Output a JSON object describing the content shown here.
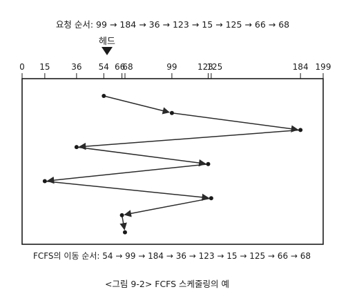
{
  "request_order": "요청 순서: 99 → 184 → 36 → 123 → 15 → 125 → 66 → 68",
  "head_label": "헤드",
  "head_position": 54,
  "axis": {
    "min": 0,
    "max": 199,
    "ticks": [
      0,
      15,
      36,
      54,
      66,
      68,
      99,
      123,
      125,
      184,
      199
    ]
  },
  "path_values": [
    54,
    99,
    184,
    36,
    123,
    15,
    125,
    66,
    68
  ],
  "movement_text": "FCFS의 이동 순서: 54 → 99 → 184 → 36 → 123 → 15 → 125 → 66 → 68",
  "caption": "<그림 9-2> FCFS 스케줄링의 예",
  "colors": {
    "ink": "#1a1a1a",
    "arrow": "#2a2a2a"
  }
}
